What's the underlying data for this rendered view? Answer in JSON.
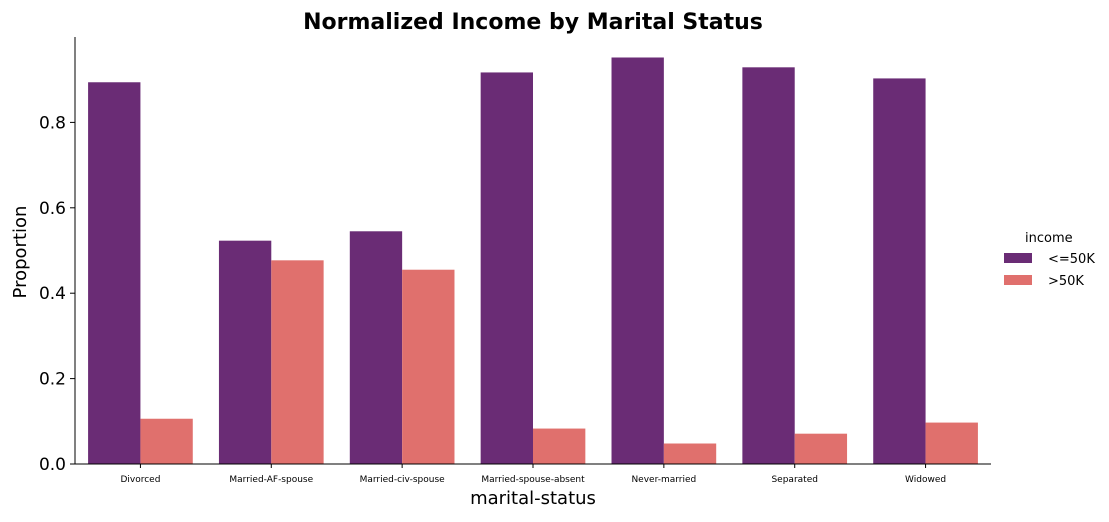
{
  "chart_data": {
    "type": "bar",
    "title": "Normalized Income by Marital Status",
    "xlabel": "marital-status",
    "ylabel": "Proportion",
    "categories": [
      "Divorced",
      "Married-AF-spouse",
      "Married-civ-spouse",
      "Married-spouse-absent",
      "Never-married",
      "Separated",
      "Widowed"
    ],
    "series": [
      {
        "name": "<=50K",
        "color": "#6a2c75",
        "values": [
          0.894,
          0.523,
          0.545,
          0.917,
          0.952,
          0.929,
          0.903
        ]
      },
      {
        "name": ">50K",
        "color": "#e0706d",
        "values": [
          0.106,
          0.477,
          0.455,
          0.083,
          0.048,
          0.071,
          0.097
        ]
      }
    ],
    "ylim": [
      0,
      1.0
    ],
    "yticks": [
      "0.0",
      "0.2",
      "0.4",
      "0.6",
      "0.8"
    ],
    "legend": {
      "title": "income",
      "placement": "right"
    },
    "grid": false
  }
}
